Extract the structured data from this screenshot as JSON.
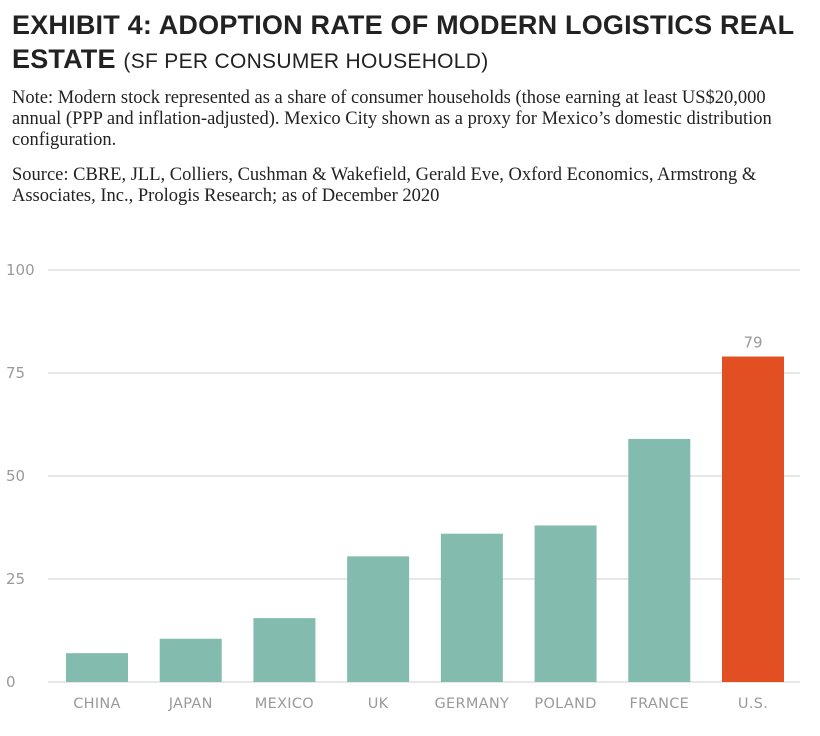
{
  "exhibit": {
    "title_main": "EXHIBIT 4: ADOPTION RATE OF MODERN LOGISTICS REAL ESTATE",
    "title_sub": "(SF PER CONSUMER HOUSEHOLD)",
    "note": "Note: Modern stock represented as a share of consumer households (those earning at least US$20,000 annual (PPP and inflation-adjusted). Mexico City shown as a proxy for Mexico’s domestic distribution configuration.",
    "source": "Source: CBRE, JLL, Colliers, Cushman & Wakefield, Gerald Eve, Oxford Economics, Armstrong & Associates, Inc., Prologis Research; as of December 2020"
  },
  "chart_data": {
    "type": "bar",
    "categories": [
      "CHINA",
      "JAPAN",
      "MEXICO",
      "UK",
      "GERMANY",
      "POLAND",
      "FRANCE",
      "U.S."
    ],
    "values": [
      7,
      10.5,
      15.5,
      30.5,
      36,
      38,
      59,
      79
    ],
    "data_labels": [
      null,
      null,
      null,
      null,
      null,
      null,
      null,
      "79"
    ],
    "ylim": [
      0,
      100
    ],
    "yticks": [
      0,
      25,
      50,
      75,
      100
    ],
    "grid": true,
    "colors": {
      "default": "#83bcaf",
      "highlight": "#e24f22",
      "highlight_index": 7,
      "grid": "#cfcfcf"
    },
    "title": "",
    "xlabel": "",
    "ylabel": ""
  }
}
